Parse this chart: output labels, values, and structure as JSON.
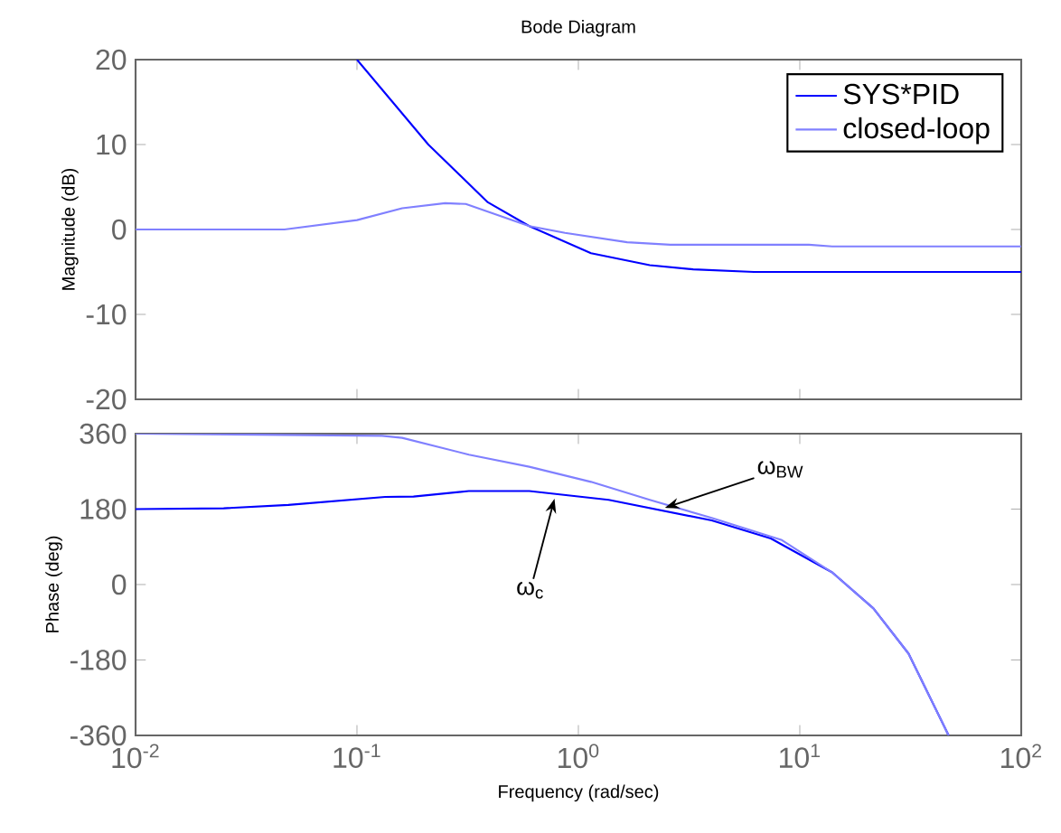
{
  "chart_data": [
    {
      "type": "line",
      "title": "Bode Diagram",
      "ylabel": "Magnitude (dB)",
      "log": "x",
      "xlim": [
        0.01,
        100
      ],
      "ylim": [
        -20,
        20
      ],
      "xticks": [
        0.01,
        0.1,
        1,
        10,
        100
      ],
      "yticks": [
        -20,
        -10,
        0,
        10,
        20
      ],
      "tick_labels": "y",
      "legend": "top right",
      "grid": false,
      "series": [
        {
          "name": "SYS*PID",
          "color": "#0000ff",
          "x": [
            0.1,
            0.21,
            0.39,
            0.6,
            1.14,
            2.1,
            3.3,
            6.2,
            100
          ],
          "values": [
            20,
            10,
            3.2,
            0.4,
            -2.8,
            -4.2,
            -4.7,
            -5,
            -5
          ]
        },
        {
          "name": "closed-loop",
          "color": "#8080ff",
          "x": [
            0.01,
            0.047,
            0.1,
            0.16,
            0.25,
            0.31,
            0.6,
            0.87,
            1.66,
            2.6,
            11,
            14,
            100
          ],
          "values": [
            0,
            0,
            1.1,
            2.5,
            3.1,
            3,
            0.4,
            -0.4,
            -1.5,
            -1.8,
            -1.8,
            -2,
            -2
          ]
        }
      ]
    },
    {
      "type": "line",
      "xlabel": "Frequency  (rad/sec)",
      "ylabel": "Phase (deg)",
      "log": "x",
      "xlim": [
        0.01,
        100
      ],
      "ylim": [
        -360,
        360
      ],
      "xticks": [
        {
          "value": 0.01,
          "label": "10$^{-2}$"
        },
        {
          "value": 0.1,
          "label": "10$^{-1}$"
        },
        {
          "value": 1,
          "label": "10$^{0}$"
        },
        {
          "value": 10,
          "label": "10$^{1}$"
        },
        {
          "value": 100,
          "label": "10$^{2}$"
        }
      ],
      "yticks": [
        -360,
        -180,
        0,
        180,
        360
      ],
      "grid": false,
      "annotations": [
        {
          "text": "ω$_{c}$",
          "x": 0.78,
          "y": 205
        },
        {
          "text": "ω$_{BW}$",
          "x": 2.46,
          "y": 183
        }
      ],
      "series": [
        {
          "color": "#0000ff",
          "x": [
            0.01,
            0.025,
            0.049,
            0.134,
            0.18,
            0.32,
            0.6,
            1.37,
            4,
            7.4,
            14,
            21.5,
            31,
            47
          ],
          "values": [
            180,
            182,
            190,
            209,
            210,
            223,
            223,
            202,
            153,
            110,
            29,
            -57,
            -165,
            -360
          ]
        },
        {
          "color": "#8080ff",
          "x": [
            0.01,
            0.13,
            0.16,
            0.32,
            0.6,
            1.14,
            2.1,
            4,
            8.3,
            14,
            21.5,
            31,
            47
          ],
          "values": [
            360,
            355,
            350,
            310,
            281,
            245,
            202,
            159,
            106,
            29,
            -57,
            -165,
            -360
          ]
        }
      ]
    }
  ]
}
